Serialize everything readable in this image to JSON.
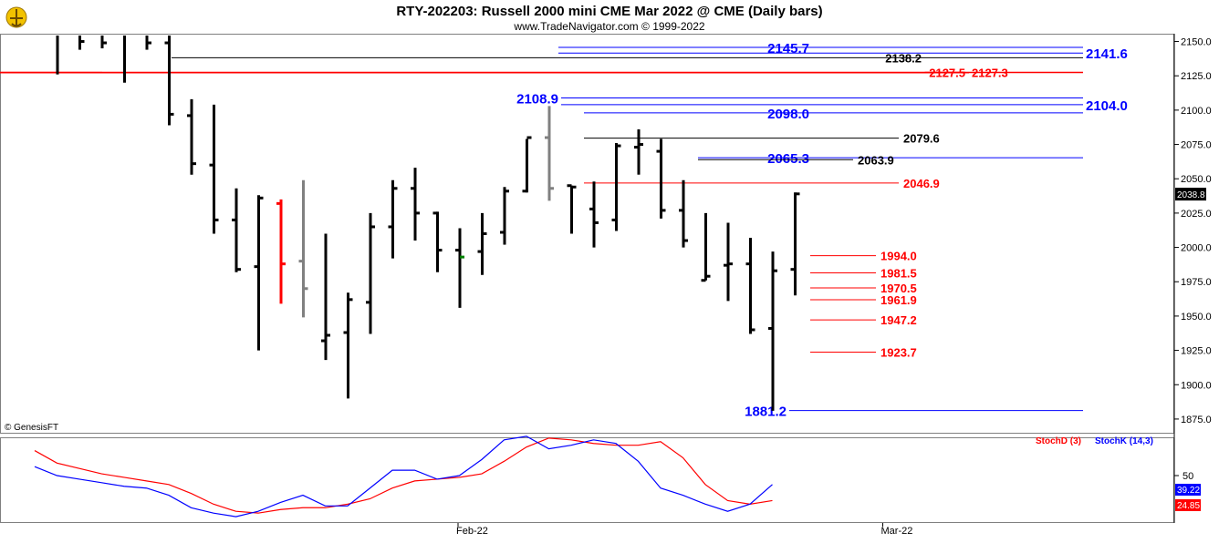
{
  "header": {
    "title": "RTY-202203:  Russell 2000 mini CME Mar 2022 @ CME  (Daily bars)",
    "subtitle": "www.TradeNavigator.com © 1999-2022"
  },
  "watermark": "© GenesisFT",
  "colors": {
    "bar": "#000000",
    "bar_red": "#ff0000",
    "bar_gray": "#808080",
    "bar_green": "#008000",
    "level_blue": "#0000ff",
    "level_red": "#ff0000",
    "level_black": "#000000",
    "stoch_d": "#ff0000",
    "stoch_k": "#0000ff",
    "last_price_bg": "#000000"
  },
  "chart_data": [
    {
      "type": "ohlc",
      "title": "RTY-202203:  Russell 2000 mini CME Mar 2022 @ CME  (Daily bars)",
      "ylim": [
        1865,
        2155
      ],
      "y_ticks": [
        1875,
        1900,
        1925,
        1950,
        1975,
        2000,
        2025,
        2050,
        2075,
        2100,
        2125,
        2150
      ],
      "x_labels": [
        {
          "label": "Feb-22",
          "bar": 18
        },
        {
          "label": "Mar-22",
          "bar": 37
        }
      ],
      "last_price": "2038.8",
      "bars": [
        {
          "o": 2160,
          "h": 2160,
          "l": 2126,
          "c": 2158,
          "color": "black"
        },
        {
          "o": 2160,
          "h": 2160,
          "l": 2144,
          "c": 2150,
          "color": "black"
        },
        {
          "o": 2160,
          "h": 2160,
          "l": 2145,
          "c": 2149,
          "color": "black"
        },
        {
          "o": 2160,
          "h": 2160,
          "l": 2120,
          "c": 2155,
          "color": "black"
        },
        {
          "o": 2160,
          "h": 2160,
          "l": 2144,
          "c": 2149,
          "color": "black"
        },
        {
          "o": 2149,
          "h": 2160,
          "l": 2089,
          "c": 2097,
          "color": "black"
        },
        {
          "o": 2096,
          "h": 2108,
          "l": 2053,
          "c": 2061,
          "color": "black"
        },
        {
          "o": 2060,
          "h": 2104,
          "l": 2010,
          "c": 2020,
          "color": "black"
        },
        {
          "o": 2020,
          "h": 2043,
          "l": 1982,
          "c": 1984,
          "color": "black"
        },
        {
          "o": 1986,
          "h": 2038,
          "l": 1925,
          "c": 2036,
          "color": "black"
        },
        {
          "o": 2032,
          "h": 2035,
          "l": 1959,
          "c": 1988,
          "color": "red"
        },
        {
          "o": 1990,
          "h": 2049,
          "l": 1949,
          "c": 1970,
          "color": "gray"
        },
        {
          "o": 1932,
          "h": 2010,
          "l": 1918,
          "c": 1936,
          "color": "black"
        },
        {
          "o": 1938,
          "h": 1967,
          "l": 1890,
          "c": 1962,
          "color": "black"
        },
        {
          "o": 1960,
          "h": 2025,
          "l": 1937,
          "c": 2015,
          "color": "black"
        },
        {
          "o": 2015,
          "h": 2049,
          "l": 1992,
          "c": 2043,
          "color": "black"
        },
        {
          "o": 2043,
          "h": 2058,
          "l": 2005,
          "c": 2025,
          "color": "black"
        },
        {
          "o": 2025,
          "h": 2026,
          "l": 1982,
          "c": 1998,
          "color": "black"
        },
        {
          "o": 1998,
          "h": 2014,
          "l": 1956,
          "c": 1993,
          "color": "black"
        },
        {
          "o": 1997,
          "h": 2025,
          "l": 1980,
          "c": 2010,
          "color": "black"
        },
        {
          "o": 2011,
          "h": 2044,
          "l": 2002,
          "c": 2041,
          "color": "black"
        },
        {
          "o": 2041,
          "h": 2079,
          "l": 2040,
          "c": 2080,
          "color": "black"
        },
        {
          "o": 2080,
          "h": 2103,
          "l": 2034,
          "c": 2043,
          "color": "gray"
        },
        {
          "o": 2045,
          "h": 2045,
          "l": 2010,
          "c": 2044,
          "color": "black"
        },
        {
          "o": 2028,
          "h": 2048,
          "l": 2000,
          "c": 2018,
          "color": "black"
        },
        {
          "o": 2020,
          "h": 2076,
          "l": 2012,
          "c": 2074,
          "color": "black"
        },
        {
          "o": 2073,
          "h": 2086,
          "l": 2053,
          "c": 2075,
          "color": "black"
        },
        {
          "o": 2070,
          "h": 2079,
          "l": 2021,
          "c": 2027,
          "color": "black"
        },
        {
          "o": 2027,
          "h": 2049,
          "l": 2000,
          "c": 2005,
          "color": "black"
        },
        {
          "o": 1976,
          "h": 2025,
          "l": 1976,
          "c": 1979,
          "color": "black"
        },
        {
          "o": 1987,
          "h": 2018,
          "l": 1961,
          "c": 1988,
          "color": "black"
        },
        {
          "o": 1988,
          "h": 2007,
          "l": 1937,
          "c": 1940,
          "color": "black"
        },
        {
          "o": 1941,
          "h": 1997,
          "l": 1881,
          "c": 1983,
          "color": "black"
        },
        {
          "o": 1984,
          "h": 2040,
          "l": 1965,
          "c": 2039,
          "color": "black"
        }
      ],
      "levels": [
        {
          "value": 2145.7,
          "label": "2145.7",
          "color": "blue"
        },
        {
          "value": 2141.6,
          "label": "2141.6",
          "color": "blue"
        },
        {
          "value": 2138.2,
          "label": "2138.2",
          "color": "black"
        },
        {
          "value": 2127.5,
          "label": "2127.5",
          "color": "red",
          "struck": true
        },
        {
          "value": 2127.3,
          "label": "2127.3",
          "color": "red"
        },
        {
          "value": 2108.9,
          "label": "2108.9",
          "color": "blue"
        },
        {
          "value": 2104.0,
          "label": "2104.0",
          "color": "blue"
        },
        {
          "value": 2098.0,
          "label": "2098.0",
          "color": "blue"
        },
        {
          "value": 2079.6,
          "label": "2079.6",
          "color": "black"
        },
        {
          "value": 2065.3,
          "label": "2065.3",
          "color": "blue"
        },
        {
          "value": 2063.9,
          "label": "2063.9",
          "color": "black"
        },
        {
          "value": 2046.9,
          "label": "2046.9",
          "color": "red"
        },
        {
          "value": 1994.0,
          "label": "1994.0",
          "color": "red"
        },
        {
          "value": 1981.5,
          "label": "1981.5",
          "color": "red"
        },
        {
          "value": 1970.5,
          "label": "1970.5",
          "color": "red"
        },
        {
          "value": 1961.9,
          "label": "1961.9",
          "color": "red"
        },
        {
          "value": 1947.2,
          "label": "1947.2",
          "color": "red"
        },
        {
          "value": 1923.7,
          "label": "1923.7",
          "color": "red"
        },
        {
          "value": 1881.2,
          "label": "1881.2",
          "color": "blue"
        }
      ]
    },
    {
      "type": "line",
      "ylim": [
        0,
        100
      ],
      "y_ticks": [
        50
      ],
      "legend": [
        "StochD (3)",
        "StochK (14,3)"
      ],
      "last_values": {
        "k": "39.22",
        "d": "24.85"
      },
      "series": [
        {
          "name": "StochD (3)",
          "key": "d",
          "values": [
            78,
            64,
            58,
            52,
            48,
            44,
            40,
            30,
            18,
            10,
            8,
            12,
            14,
            14,
            18,
            24,
            36,
            44,
            46,
            48,
            52,
            66,
            82,
            92,
            90,
            86,
            84,
            84,
            88,
            70,
            40,
            22,
            18,
            22
          ]
        },
        {
          "name": "StochK (14,3)",
          "key": "k",
          "values": [
            60,
            50,
            46,
            42,
            38,
            36,
            28,
            14,
            8,
            4,
            10,
            20,
            28,
            16,
            16,
            36,
            56,
            56,
            46,
            50,
            68,
            90,
            94,
            80,
            84,
            90,
            86,
            66,
            36,
            28,
            18,
            10,
            18,
            40
          ]
        }
      ]
    }
  ]
}
